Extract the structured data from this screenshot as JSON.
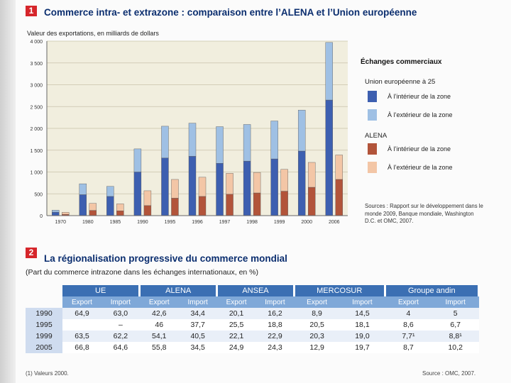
{
  "section1": {
    "number": "1",
    "title": "Commerce intra- et extrazone : comparaison entre l’ALENA et l’Union européenne",
    "ylabel": "Valeur des exportations, en milliards de dollars"
  },
  "legend": {
    "title": "Échanges commerciaux",
    "eu_label": "Union européenne à 25",
    "alena_label": "ALENA",
    "items": [
      {
        "label": "À l’intérieur de la zone",
        "color": "#3d5fb0"
      },
      {
        "label": "À l’extérieur de la zone",
        "color": "#9fc0e4"
      },
      {
        "label": "À l’intérieur de la zone",
        "color": "#b2543a"
      },
      {
        "label": "À l’extérieur de la zone",
        "color": "#f3c6a6"
      }
    ]
  },
  "sources_text": "Sources : Rapport sur le développement dans le monde 2009, Banque mondiale, Washington D.C. et OMC, 2007.",
  "chart_data": {
    "type": "bar",
    "categories": [
      "1970",
      "1980",
      "1985",
      "1990",
      "1995",
      "1996",
      "1997",
      "1998",
      "1999",
      "2000",
      "2006"
    ],
    "ylim": [
      0,
      4000
    ],
    "yticks": [
      0,
      500,
      1000,
      1500,
      2000,
      2500,
      3000,
      3500,
      4000
    ],
    "ytick_labels": [
      "0",
      "500",
      "1 000",
      "1 500",
      "2 000",
      "2 500",
      "3 000",
      "3 500",
      "4 000"
    ],
    "grid": true,
    "legend_position": "right",
    "stacks": [
      {
        "zone": "Union européenne à 25",
        "series": [
          {
            "name": "À l’intérieur de la zone",
            "values": [
              80,
              480,
              440,
              1000,
              1320,
              1360,
              1200,
              1250,
              1300,
              1480,
              2650
            ],
            "color": "#3d5fb0"
          },
          {
            "name": "À l’extérieur de la zone",
            "values": [
              45,
              250,
              230,
              530,
              730,
              760,
              840,
              840,
              870,
              940,
              1320
            ],
            "color": "#9fc0e4"
          }
        ]
      },
      {
        "zone": "ALENA",
        "series": [
          {
            "name": "À l’intérieur de la zone",
            "values": [
              30,
              120,
              110,
              230,
              400,
              440,
              490,
              520,
              560,
              650,
              830
            ],
            "color": "#b2543a"
          },
          {
            "name": "À l’extérieur de la zone",
            "values": [
              45,
              160,
              160,
              340,
              430,
              440,
              480,
              470,
              500,
              570,
              560
            ],
            "color": "#f3c6a6"
          }
        ]
      }
    ]
  },
  "section2": {
    "number": "2",
    "title": "La régionalisation progressive du commerce mondial",
    "subtitle": "(Part du commerce intrazone dans les échanges internationaux, en %)"
  },
  "table": {
    "groups": [
      "UE",
      "ALENA",
      "ANSEA",
      "MERCOSUR",
      "Groupe andin"
    ],
    "subheaders": [
      "Export",
      "Import"
    ],
    "rows": [
      {
        "year": "1990",
        "values": [
          "64,9",
          "63,0",
          "42,6",
          "34,4",
          "20,1",
          "16,2",
          "8,9",
          "14,5",
          "4",
          "5"
        ]
      },
      {
        "year": "1995",
        "values": [
          "",
          "–",
          "46",
          "37,7",
          "25,5",
          "18,8",
          "20,5",
          "18,1",
          "8,6",
          "6,7"
        ]
      },
      {
        "year": "1999",
        "values": [
          "63,5",
          "62,2",
          "54,1",
          "40,5",
          "22,1",
          "22,9",
          "20,3",
          "19,0",
          "7,7¹",
          "8,8¹"
        ]
      },
      {
        "year": "2005",
        "values": [
          "66,8",
          "64,6",
          "55,8",
          "34,5",
          "24,9",
          "24,3",
          "12,9",
          "19,7",
          "8,7",
          "10,2"
        ]
      }
    ]
  },
  "footnote": "(1) Valeurs 2000.",
  "source_right": "Source : OMC, 2007."
}
